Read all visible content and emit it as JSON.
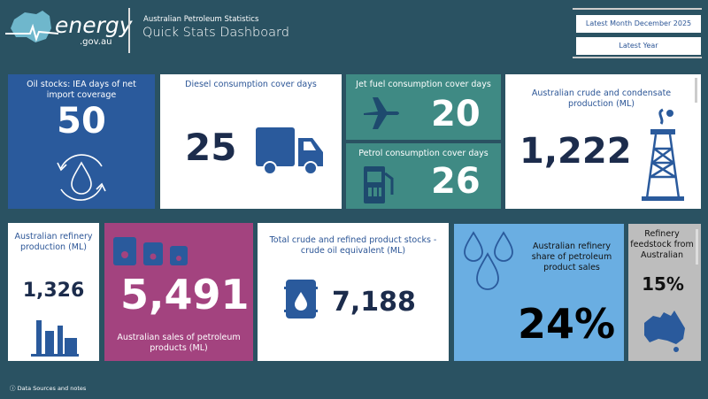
{
  "header": {
    "logo_text": "energy",
    "logo_sub": ".gov.au",
    "subtitle": "Australian Petroleum Statistics",
    "title": "Quick Stats Dashboard"
  },
  "filters": {
    "month": "Latest Month December 2025",
    "year": "Latest Year"
  },
  "tiles": {
    "oil_stocks": {
      "label": "Oil stocks: IEA days of net import coverage",
      "value": "50"
    },
    "diesel": {
      "label": "Diesel consumption cover days",
      "value": "25"
    },
    "jet": {
      "label": "Jet fuel consumption cover days",
      "value": "20"
    },
    "petrol": {
      "label": "Petrol consumption cover days",
      "value": "26"
    },
    "crude": {
      "label": "Australian crude and condensate production (ML)",
      "value": "1,222"
    },
    "refinery": {
      "label": "Australian refinery production (ML)",
      "value": "1,326"
    },
    "sales": {
      "label": "Australian sales of petroleum products (ML)",
      "value": "5,491"
    },
    "stocks": {
      "label": "Total crude and refined product stocks - crude oil equivalent (ML)",
      "value": "7,188"
    },
    "share": {
      "label": "Australian refinery share of petroleum product sales",
      "value": "24%"
    },
    "feedstock": {
      "label": "Refinery feedstock from Australian",
      "value": "15%"
    }
  },
  "footer": {
    "notes": "Data Sources and notes"
  },
  "colors": {
    "background": "#2a5262",
    "blue": "#2a5a9c",
    "teal": "#3f8a84",
    "purple": "#a3437f",
    "light_blue": "#6aaee2",
    "grey": "#bdbdbd"
  }
}
